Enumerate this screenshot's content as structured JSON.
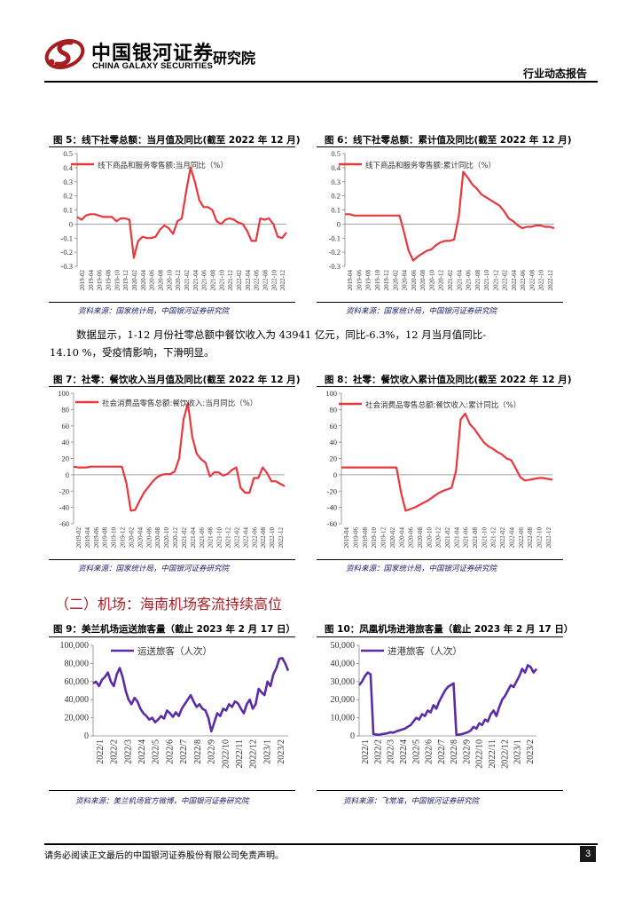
{
  "header": {
    "logo_cn": "中国银河证券",
    "logo_en": "CHINA GALAXY SECURITIES",
    "institute": "研究院",
    "report_type": "行业动态报告",
    "brand_color": "#a51e22"
  },
  "charts": [
    {
      "caption": "图 5：线下社零总额：当月值及同比(截至 2022 年 12 月)",
      "source": "资料来源：国家统计局，中国银河证券研究院",
      "chart_data": {
        "type": "line",
        "legend": "线下商品和服务零售额:当月同比（%）",
        "series_color": "#e8373d",
        "ylim": [
          -0.3,
          0.5
        ],
        "yticks": [
          "0.5",
          "0.4",
          "0.3",
          "0.2",
          "0.1",
          "0",
          "-0.1",
          "-0.2",
          "-0.3"
        ],
        "xticks": [
          "2019-02",
          "2019-04",
          "2019-06",
          "2019-08",
          "2019-10",
          "2019-12",
          "2020-02",
          "2020-04",
          "2020-06",
          "2020-08",
          "2020-10",
          "2020-12",
          "2021-02",
          "2021-04",
          "2021-06",
          "2021-08",
          "2021-10",
          "2021-12",
          "2022-02",
          "2022-04",
          "2022-06",
          "2022-08",
          "2022-10",
          "2022-12"
        ],
        "values": [
          0.05,
          0.03,
          0.06,
          0.07,
          0.07,
          0.06,
          0.05,
          0.05,
          0.05,
          0.02,
          0.04,
          0.04,
          0.03,
          -0.24,
          -0.12,
          -0.09,
          -0.1,
          -0.1,
          -0.09,
          -0.04,
          -0.01,
          -0.03,
          -0.07,
          0.02,
          0.04,
          0.23,
          0.4,
          0.3,
          0.17,
          0.12,
          0.12,
          0.1,
          0.02,
          0.0,
          0.03,
          0.04,
          0.03,
          0.01,
          0.0,
          -0.05,
          -0.12,
          -0.12,
          0.04,
          0.03,
          0.04,
          0.0,
          -0.09,
          -0.1,
          -0.06
        ]
      }
    },
    {
      "caption": "图 6：线下社零总额：累计值及同比(截至 2022 年 12 月)",
      "source": "资料来源：国家统计局，中国银河证券研究院",
      "chart_data": {
        "type": "line",
        "legend": "线下商品和服务零售额:累计同比（%）",
        "series_color": "#e8373d",
        "ylim": [
          -0.3,
          0.5
        ],
        "yticks": [
          "0.5",
          "0.4",
          "0.3",
          "0.2",
          "0.1",
          "0",
          "-0.1",
          "-0.2",
          "-0.3"
        ],
        "xticks": [
          "2019-04",
          "2019-06",
          "2019-08",
          "2019-10",
          "2019-12",
          "2020-02",
          "2020-04",
          "2020-06",
          "2020-08",
          "2020-10",
          "2020-12",
          "2021-02",
          "2021-04",
          "2021-06",
          "2021-08",
          "2021-10",
          "2021-12",
          "2022-02",
          "2022-04",
          "2022-06",
          "2022-08",
          "2022-10",
          "2022-12"
        ],
        "values": [
          0.07,
          0.07,
          0.06,
          0.06,
          0.06,
          0.06,
          0.06,
          0.06,
          0.06,
          0.06,
          0.06,
          0.06,
          0.06,
          -0.06,
          -0.19,
          -0.26,
          -0.23,
          -0.21,
          -0.19,
          -0.18,
          -0.15,
          -0.13,
          -0.12,
          -0.12,
          -0.11,
          0.05,
          0.37,
          0.33,
          0.28,
          0.25,
          0.21,
          0.19,
          0.17,
          0.15,
          0.13,
          0.09,
          0.04,
          0.02,
          -0.01,
          -0.03,
          -0.02,
          -0.02,
          -0.01,
          -0.01,
          -0.02,
          -0.02,
          -0.03
        ]
      }
    },
    {
      "caption": "图 7：社零：餐饮收入当月值及同比(截至 2022 年 12 月)",
      "source": "资料来源：国家统计局，中国银河证券研究院",
      "chart_data": {
        "type": "line",
        "legend": "社会消费品零售总额:餐饮收入:当月同比（%）",
        "series_color": "#e8373d",
        "ylim": [
          -60,
          100
        ],
        "yticks": [
          "100",
          "80",
          "60",
          "40",
          "20",
          "0",
          "-20",
          "-40",
          "-60"
        ],
        "xticks": [
          "2019-02",
          "2019-04",
          "2019-06",
          "2019-08",
          "2019-10",
          "2019-12",
          "2020-02",
          "2020-04",
          "2020-06",
          "2020-08",
          "2020-10",
          "2020-12",
          "2021-02",
          "2021-04",
          "2021-06",
          "2021-08",
          "2021-10",
          "2021-12",
          "2022-02",
          "2022-04",
          "2022-06",
          "2022-08",
          "2022-10",
          "2022-12"
        ],
        "values": [
          10,
          9,
          9,
          9,
          10,
          10,
          10,
          10,
          10,
          10,
          10,
          10,
          -10,
          -44,
          -43,
          -32,
          -22,
          -15,
          -8,
          -3,
          0,
          1,
          1,
          4,
          20,
          68,
          88,
          46,
          26,
          19,
          15,
          -2,
          3,
          3,
          -1,
          1,
          6,
          9,
          -16,
          -22,
          -22,
          -4,
          -4,
          9,
          2,
          -8,
          -8,
          -11,
          -14
        ]
      }
    },
    {
      "caption": "图 8：社零：餐饮收入累计值及同比(截至 2022 年 12 月)",
      "source": "资料来源：国家统计局，中国银河证券研究院",
      "chart_data": {
        "type": "line",
        "legend": "社会消费品零售总额:餐饮收入:累计同比（%）",
        "series_color": "#e8373d",
        "ylim": [
          -60,
          100
        ],
        "yticks": [
          "100",
          "80",
          "60",
          "40",
          "20",
          "0",
          "-20",
          "-40",
          "-60"
        ],
        "xticks": [
          "2019-04",
          "2019-06",
          "2019-08",
          "2019-10",
          "2019-12",
          "2020-02",
          "2020-04",
          "2020-06",
          "2020-08",
          "2020-10",
          "2020-12",
          "2021-02",
          "2021-04",
          "2021-06",
          "2021-08",
          "2021-10",
          "2021-12",
          "2022-02",
          "2022-04",
          "2022-06",
          "2022-08",
          "2022-10",
          "2022-12"
        ],
        "values": [
          9,
          9,
          9,
          9,
          9,
          9,
          9,
          9,
          9,
          9,
          9,
          9,
          9,
          -22,
          -44,
          -42,
          -40,
          -37,
          -34,
          -31,
          -27,
          -23,
          -20,
          -18,
          -16,
          5,
          68,
          75,
          62,
          56,
          48,
          40,
          35,
          32,
          28,
          25,
          20,
          18,
          8,
          -3,
          -7,
          -6,
          -5,
          -4,
          -4,
          -5,
          -6
        ]
      }
    },
    {
      "caption": "图 9：美兰机场运送旅客量（截止 2023 年 2 月 17 日）",
      "source": "资料来源：美兰机场官方微博，中国银河证券研究院",
      "chart_data": {
        "type": "line",
        "legend": "运送旅客（人次）",
        "series_color": "#5b2ca8",
        "ylim": [
          0,
          100000
        ],
        "yticks": [
          "100,000",
          "80,000",
          "60,000",
          "40,000",
          "20,000",
          "0"
        ],
        "xticks": [
          "2022/1",
          "2022/2",
          "2022/3",
          "2022/4",
          "2022/5",
          "2022/6",
          "2022/7",
          "2022/8",
          "2022/9",
          "2022/10",
          "2022/11",
          "2022/12",
          "2023/1",
          "2023/2"
        ],
        "values": [
          58000,
          60000,
          55000,
          62000,
          65000,
          70000,
          60000,
          55000,
          68000,
          75000,
          65000,
          50000,
          40000,
          35000,
          42000,
          38000,
          30000,
          25000,
          22000,
          18000,
          20000,
          15000,
          18000,
          22000,
          19000,
          28000,
          25000,
          21000,
          26000,
          22000,
          30000,
          35000,
          40000,
          45000,
          38000,
          32000,
          35000,
          30000,
          28000,
          20000,
          5000,
          15000,
          25000,
          22000,
          30000,
          28000,
          35000,
          32000,
          38000,
          36000,
          30000,
          25000,
          35000,
          40000,
          30000,
          35000,
          52000,
          48000,
          45000,
          60000,
          55000,
          68000,
          75000,
          85000,
          86000,
          80000,
          72000
        ]
      }
    },
    {
      "caption": "图 10：凤凰机场进港旅客量（截止 2023 年 2 月 17 日）",
      "source": "资料来源：飞常准，中国银河证券研究院",
      "chart_data": {
        "type": "line",
        "legend": "进港旅客（人次）",
        "series_color": "#5b2ca8",
        "ylim": [
          0,
          50000
        ],
        "yticks": [
          "50,000",
          "40,000",
          "30,000",
          "20,000",
          "10,000",
          "0"
        ],
        "xticks": [
          "2022/1",
          "2022/2",
          "2022/3",
          "2022/4",
          "2022/5",
          "2022/6",
          "2022/7",
          "2022/8",
          "2022/9",
          "2022/10",
          "2022/11",
          "2022/12",
          "2023/1",
          "2023/2"
        ],
        "values": [
          28000,
          30000,
          33000,
          35000,
          34000,
          1000,
          800,
          600,
          1000,
          1200,
          1500,
          2000,
          1800,
          2500,
          3000,
          3500,
          4000,
          5000,
          6000,
          8000,
          10000,
          9000,
          12000,
          11000,
          14000,
          13000,
          17000,
          15000,
          19000,
          22000,
          25000,
          27000,
          28000,
          29000,
          500,
          800,
          1000,
          1500,
          2000,
          3000,
          5000,
          4000,
          7000,
          6000,
          9000,
          8000,
          12000,
          14000,
          11000,
          16000,
          20000,
          22000,
          25000,
          28000,
          27000,
          30000,
          33000,
          37000,
          35000,
          39000,
          38000,
          35000,
          37000
        ]
      }
    }
  ],
  "paragraph": {
    "line1": "数据显示，1-12 月份社零总额中餐饮收入为 43941 亿元，同比-6.3%，12 月当月值同比-",
    "line2": "14.10 %，受疫情影响，下滑明显。"
  },
  "section": {
    "title": "（二）机场：海南机场客流持续高位"
  },
  "footer": {
    "disclaimer": "请务必阅读正文最后的中国银河证券股份有限公司免责声明。",
    "page": "3"
  }
}
